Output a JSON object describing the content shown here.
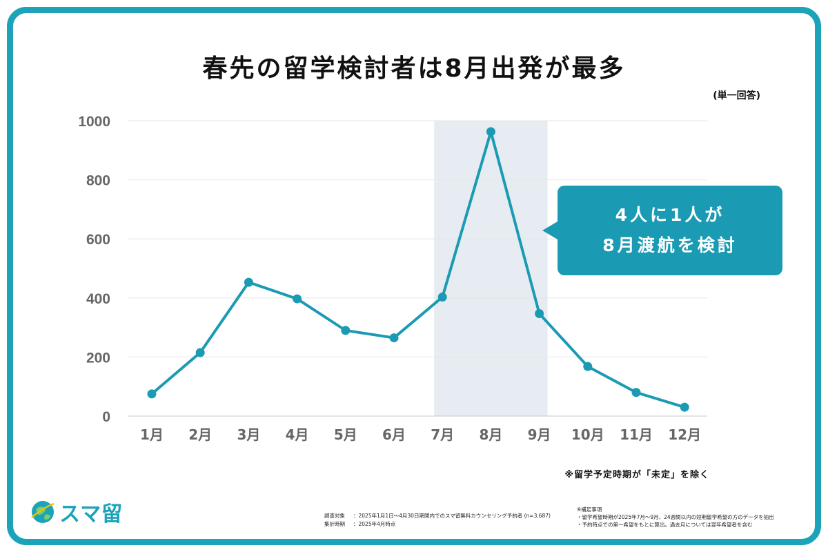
{
  "title": "春先の留学検討者は8月出発が最多",
  "unit_note": "(単一回答)",
  "callout": {
    "line1": "4人に1人が",
    "line2": "8月渡航を検討"
  },
  "exclusion_note": "※留学予定時期が「未定」を除く",
  "logo": {
    "text": "スマ留"
  },
  "survey": {
    "target_label": "調査対象",
    "target_value": "：2025年1月1日〜4月30日期間内でのスマ留無料カウンセリング予約者 (n=3,687)",
    "period_label": "集計時期",
    "period_value": "：2025年4月時点"
  },
  "supplement": {
    "heading": "※補足事項",
    "line1": "・留学希望時期が2025年7月〜9月、24週間以内の短期留学希望の方のデータを抽出",
    "line2": "・予約時点での第一希望をもとに算出。過去月については翌年希望者を含む"
  },
  "colors": {
    "accent": "#1aa3b9",
    "line": "#1a9bb3",
    "highlight_band": "#e6ecf2",
    "axis_text": "#666666"
  },
  "chart_data": {
    "type": "line",
    "categories": [
      "1月",
      "2月",
      "3月",
      "4月",
      "5月",
      "6月",
      "7月",
      "8月",
      "9月",
      "10月",
      "11月",
      "12月"
    ],
    "series": [
      {
        "values": [
          75,
          215,
          453,
          397,
          290,
          265,
          403,
          963,
          347,
          168,
          80,
          30
        ]
      }
    ],
    "ylim": [
      0,
      1000
    ],
    "yticks": [
      0,
      200,
      400,
      600,
      800,
      1000
    ],
    "grid": true,
    "highlight_categories": [
      "7月",
      "8月",
      "9月"
    ]
  }
}
